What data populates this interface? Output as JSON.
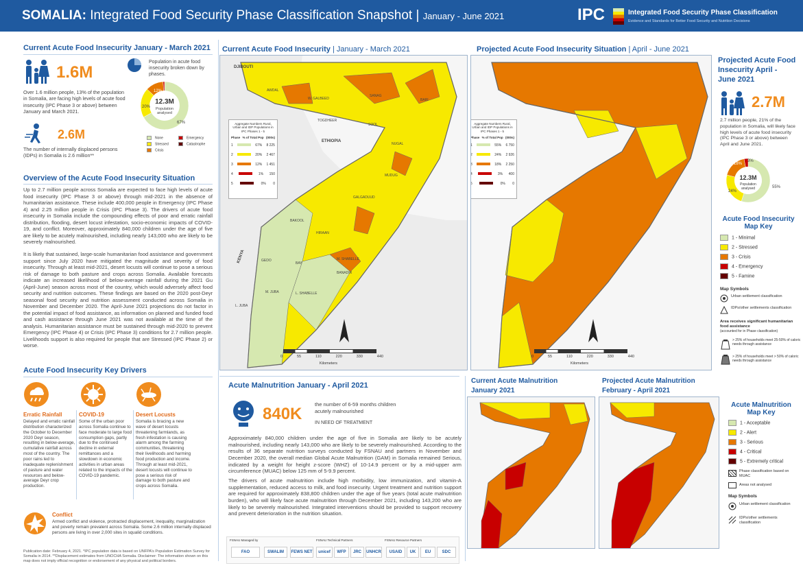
{
  "header": {
    "country": "SOMALIA:",
    "title": "Integrated Food Security Phase Classification Snapshot |",
    "period": "January - June 2021",
    "logo_mark": "IPC",
    "logo_name": "Integrated Food Security Phase Classification",
    "logo_tagline": "Evidence and Standards for Better Food Security and Nutrition Decisions"
  },
  "current": {
    "title": "Current Acute Food Insecurity January - March 2021",
    "people": "1.6M",
    "people_text": "Over 1.6 million people, 13% of the population in Somalia, are facing high levels of acute food insecurity (IPC Phase 3 or above) between January and March 2021.",
    "idp": "2.6M",
    "idp_text": "The number of internally displaced persons (IDPs) in Somalia is 2.6 million**",
    "donut_caption": "Population in acute food insecurity broken down by phases.",
    "donut_center": "12.3M",
    "donut_center_sub": "Population analysed",
    "donut": [
      {
        "label": "67%",
        "pct": 67,
        "color": "#d6e8b0"
      },
      {
        "label": "20%",
        "pct": 20,
        "color": "#f7e900"
      },
      {
        "label": "12%",
        "pct": 12,
        "color": "#e67800"
      },
      {
        "label": "",
        "pct": 1,
        "color": "#c80000"
      }
    ],
    "legend": [
      {
        "label": "None",
        "color": "#d6e8b0"
      },
      {
        "label": "Emergency",
        "color": "#c80000"
      },
      {
        "label": "Stressed",
        "color": "#f7e900"
      },
      {
        "label": "Catastrophe",
        "color": "#640000"
      },
      {
        "label": "Crisis",
        "color": "#e67800"
      }
    ]
  },
  "overview": {
    "title": "Overview of the Acute Food Insecurity Situation",
    "p1": "Up to 2.7 million people across Somalia are expected to face high levels of acute food insecurity (IPC Phase 3 or above) through mid-2021 in the absence of humanitarian assistance. These include 400,000 people in Emergency (IPC Phase 4) and 2.25 million people in Crisis (IPC Phase 3). The drivers of acute food insecurity in Somalia include the compounding effects of poor and erratic rainfall distribution, flooding, desert locust infestation, socio-economic impacts of COVID-19, and conflict. Moreover, approximately 840,000 children under the age of five are likely to be acutely malnourished, including nearly 143,000 who are likely to be severely malnourished.",
    "p2": "It is likely that sustained, large-scale humanitarian food assistance and government support since July 2020 have mitigated the magnitude and severity of food insecurity. Through at least mid-2021, desert locusts will continue to pose a serious risk of damage to both pasture and crops across Somalia. Available forecasts indicate an increased likelihood of below-average rainfall during the 2021 Gu (April-June) season across most of the country, which would adversely affect food security and nutrition outcomes. These findings are based on the 2020 post-Deyr seasonal food security and nutrition assessment conducted across Somalia in November and December 2020. The April-June 2021 projections do not factor in the potential impact of food assistance, as information on planned and funded food and cash assistance through June 2021 was not available at the time of the analysis. Humanitarian assistance must be sustained through mid-2020 to prevent Emergency (IPC Phase 4) or Crisis (IPC Phase 3) conditions for 2.7 million people. Livelihoods support is also required for people that are Stressed (IPC Phase 2) or worse."
  },
  "drivers": {
    "title": "Acute Food Insecurity Key Drivers",
    "items": [
      {
        "title": "Erratic Rainfall",
        "text": "Delayed and erratic rainfall distribution characterized the October to December 2020 Deyr season, resulting in below-average, cumulative rainfall across most of the country. The poor rains led to inadequate replenishment of pasture and water resources and below-average Deyr crop production."
      },
      {
        "title": "COVID-19",
        "text": "Some of the urban poor across Somalia continue to face moderate to large food consumption gaps, partly due to the continued decline in external remittances and a slowdown in economic activities in urban areas related to the impacts of the COVID-19 pandemic."
      },
      {
        "title": "Desert Locusts",
        "text": "Somalia is bracing a new wave of desert locusts threatening farmlands, as fresh infestation is causing alarm among the farming communities, threatening their livelihoods and harming food production and income. Through at least mid-2021, desert locusts will continue to pose a serious risk of damage to both pasture and crops across Somalia."
      }
    ],
    "conflict_title": "Conflict",
    "conflict_text": "Armed conflict and violence, protracted displacement, inequality, marginalization and poverty remain prevalent across Somalia. Some 2.6 million internally displaced persons are living in over 2,000 sites in squalid conditions."
  },
  "footer": "Publication date: February 4, 2021. *IPC population data is based on UNFPA's Population Estimation Survey for Somalia in 2014. **Displacement estimates from UNOCHA Somalia. Disclaimer: The information shown on this map does not imply official recognition or endorsement of any physical and political borders.",
  "map_current": {
    "title": "Current Acute Food Insecurity",
    "period": " | January - March 2021",
    "table_title": "Aggregate Numbers Rural, Urban and IDP Populations in IPC Phases 1 - 5",
    "table_head": [
      "Phase",
      "% of Total Pop",
      "(000s)"
    ],
    "table": [
      [
        "1",
        "67%",
        "8 225"
      ],
      [
        "2",
        "20%",
        "2 467"
      ],
      [
        "3",
        "12%",
        "1 451"
      ],
      [
        "4",
        "1%",
        "150"
      ],
      [
        "5",
        "0%",
        "0"
      ]
    ],
    "scale": [
      "0",
      "55",
      "110",
      "220",
      "330",
      "440"
    ],
    "scale_unit": "Kilometers",
    "labels": [
      "DJIBOUTI",
      "ETHIOPIA",
      "KENYA",
      "AWDAL",
      "W. GALBEED",
      "TOGDHEER",
      "SANAG",
      "BARI",
      "SOOL",
      "NUGAL",
      "MUDUG",
      "GALGADUUD",
      "HIRAAN",
      "BAKOOL",
      "GEDO",
      "BAY",
      "M. SHABELLE",
      "BANADIR",
      "L. SHABELLE",
      "M. JUBA",
      "L. JUBA"
    ]
  },
  "map_projected": {
    "title": "Projected Acute Food Insecurity Situation",
    "period": " | April - June 2021",
    "table_head": [
      "Phase",
      "% of Total Pop",
      "(000s)"
    ],
    "table": [
      [
        "1",
        "55%",
        "6 750"
      ],
      [
        "2",
        "24%",
        "2 926"
      ],
      [
        "3",
        "18%",
        "2 250"
      ],
      [
        "4",
        "3%",
        "400"
      ],
      [
        "5",
        "0%",
        "0"
      ]
    ],
    "scale": [
      "0",
      "55",
      "110",
      "220",
      "330",
      "440"
    ],
    "scale_unit": "Kilometers"
  },
  "projected": {
    "title": "Projected Acute Food Insecurity April - June 2021",
    "people": "2.7M",
    "text": "2.7 million people, 21% of the population in Somalia, will likely face high levels of acute food insecurity (IPC Phase 3 or above) between April and June 2021.",
    "donut_center": "12.3M",
    "donut_center_sub": "Population analysed",
    "donut": [
      {
        "label": "55%",
        "pct": 55,
        "color": "#d6e8b0"
      },
      {
        "label": "24%",
        "pct": 24,
        "color": "#f7e900"
      },
      {
        "label": "18%",
        "pct": 18,
        "color": "#e67800"
      },
      {
        "label": "3%",
        "pct": 3,
        "color": "#c80000"
      }
    ],
    "key_title": "Acute Food Insecurity Map Key",
    "key": [
      {
        "label": "1 - Minimal",
        "color": "#d6e8b0"
      },
      {
        "label": "2 - Stressed",
        "color": "#f7e900"
      },
      {
        "label": "3 - Crisis",
        "color": "#e67800"
      },
      {
        "label": "4 - Emergency",
        "color": "#c80000"
      },
      {
        "label": "5 - Famine",
        "color": "#640000"
      }
    ],
    "symbols_title": "Map Symbols",
    "sym_urban": "Urban settlement classification",
    "sym_idp": "IDPs/other settlements classification",
    "assist_title": "Area receives significant humanitarian food assistance",
    "assist_sub": "(accounted for in Phase classification)",
    "assist_1": "> 25% of households meet 25-50% of caloric needs through assistance",
    "assist_2": "> 25% of households meet > 50% of caloric needs through assistance"
  },
  "malnutrition": {
    "title": "Acute Malnutrition January - April 2021",
    "number": "840K",
    "num_text": "the number of 6-59 months children acutely malnourished",
    "need": "IN NEED OF TREATMENT",
    "p1": "Approximately 840,000 children under the age of five in Somalia are likely to be acutely malnourished, including nearly 143,000 who are likely to be severely malnourished. According to the results of 36 separate nutrition surveys conducted by FSNAU and partners in November and December 2020, the overall median Global Acute Malnutrition (GAM) in Somalia remained Serious, indicated by a weight for height z-score (WHZ) of 10-14.9 percent or by a mid-upper arm circumference (MUAC) below 125 mm of 5-9.9 percent.",
    "p2": "The drivers of acute malnutrition include high morbidity, low immunization, and vitamin-A supplementation, reduced access to milk, and food insecurity. Urgent treatment and nutrition support are required for approximately 838,800 children under the age of five years (total acute malnutrition burden), who will likely face acute malnutrition through December 2021, including 143,200 who are likely to be severely malnourished. Integrated interventions should be provided to support recovery and prevent deterioration in the nutrition situation."
  },
  "amn_maps": {
    "current_title": "Current Acute Malnutrition",
    "current_period": "January 2021",
    "projected_title": "Projected Acute Malnutrition",
    "projected_period": "February - April 2021",
    "key_title": "Acute Malnutrition Map Key",
    "key": [
      {
        "label": "1 - Acceptable",
        "color": "#d6e8b0"
      },
      {
        "label": "2 - Alert",
        "color": "#f7e900"
      },
      {
        "label": "3 - Serious",
        "color": "#e67800"
      },
      {
        "label": "4 - Critical",
        "color": "#c80000"
      },
      {
        "label": "5 - Extremely critical",
        "color": "#640000"
      }
    ],
    "key_hatch": "Phase classification based on MUAC",
    "key_na": "Areas not analysed",
    "symbols_title": "Map Symbols",
    "sym_urban": "Urban settlement classification",
    "sym_idp": "IDPs/other settlements classification"
  },
  "partners": {
    "managed": "FSNAU Managed by",
    "technical": "FSNAU Technical Partners",
    "resource": "FSNAU Resource Partners",
    "logos": [
      "FAO",
      "SWALIM",
      "FEWS NET",
      "unicef",
      "WFP",
      "JRC",
      "UNHCR",
      "USAID",
      "UK",
      "EU",
      "SDC"
    ]
  }
}
